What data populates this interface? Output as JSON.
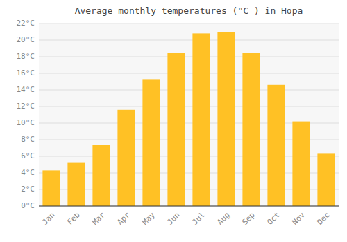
{
  "chart_data": {
    "type": "bar",
    "title": "Average monthly temperatures (°C ) in Hopa",
    "categories": [
      "Jan",
      "Feb",
      "Mar",
      "Apr",
      "May",
      "Jun",
      "Jul",
      "Aug",
      "Sep",
      "Oct",
      "Nov",
      "Dec"
    ],
    "values": [
      4.3,
      5.2,
      7.4,
      11.6,
      15.3,
      18.5,
      20.8,
      21.0,
      18.5,
      14.6,
      10.2,
      6.3
    ],
    "color": "#FFC125",
    "ylim": [
      0,
      22
    ],
    "yticks": [
      {
        "value": 0,
        "label": "0°C"
      },
      {
        "value": 2,
        "label": "2°C"
      },
      {
        "value": 4,
        "label": "4°C"
      },
      {
        "value": 6,
        "label": "6°C"
      },
      {
        "value": 8,
        "label": "8°C"
      },
      {
        "value": 10,
        "label": "10°C"
      },
      {
        "value": 12,
        "label": "12°C"
      },
      {
        "value": 14,
        "label": "14°C"
      },
      {
        "value": 16,
        "label": "16°C"
      },
      {
        "value": 18,
        "label": "18°C"
      },
      {
        "value": 20,
        "label": "20°C"
      },
      {
        "value": 22,
        "label": "22°C"
      }
    ],
    "grid": true
  }
}
